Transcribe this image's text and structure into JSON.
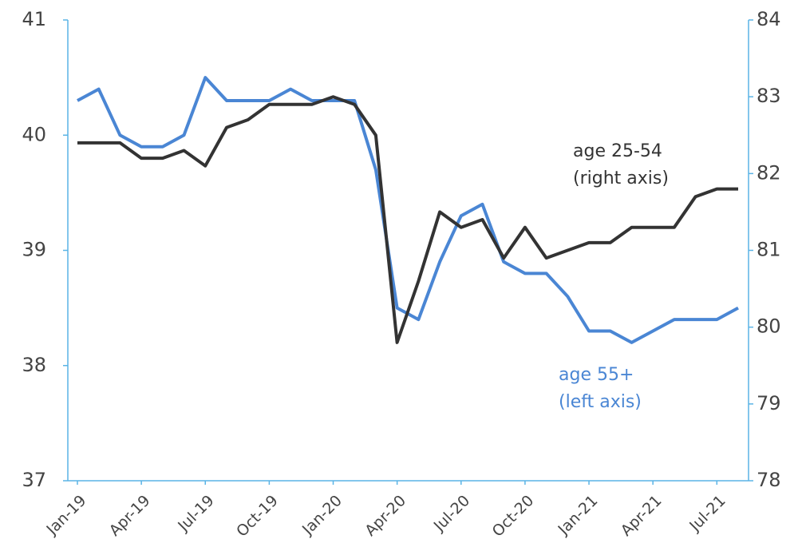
{
  "chart_data": {
    "type": "line",
    "categories": [
      "Jan-19",
      null,
      null,
      "Apr-19",
      null,
      null,
      "Jul-19",
      null,
      null,
      "Oct-19",
      null,
      null,
      "Jan-20",
      null,
      null,
      "Apr-20",
      null,
      null,
      "Jul-20",
      null,
      null,
      "Oct-20",
      null,
      null,
      "Jan-21",
      null,
      null,
      "Apr-21",
      null,
      null,
      "Jul-21",
      null
    ],
    "series": [
      {
        "name": "age 55+",
        "note": "(left axis)",
        "color": "#4a86d4",
        "axis": "y",
        "values": [
          40.3,
          40.4,
          40.0,
          39.9,
          39.9,
          40.0,
          40.5,
          40.3,
          40.3,
          40.3,
          40.4,
          40.3,
          40.3,
          40.3,
          39.7,
          38.5,
          38.4,
          38.9,
          39.3,
          39.4,
          38.9,
          38.8,
          38.8,
          38.6,
          38.3,
          38.3,
          38.2,
          38.3,
          38.4,
          38.4,
          38.4,
          38.5
        ]
      },
      {
        "name": "age 25-54",
        "note": "(right axis)",
        "color": "#333333",
        "axis": "y2",
        "values": [
          82.4,
          82.4,
          82.4,
          82.2,
          82.2,
          82.3,
          82.1,
          82.6,
          82.7,
          82.9,
          82.9,
          82.9,
          83.0,
          82.9,
          82.5,
          79.8,
          80.6,
          81.5,
          81.3,
          81.4,
          80.9,
          81.3,
          80.9,
          81.0,
          81.1,
          81.1,
          81.3,
          81.3,
          81.3,
          81.7,
          81.8,
          81.8
        ]
      }
    ],
    "ylim": [
      37,
      41
    ],
    "yticks": [
      37,
      38,
      39,
      40,
      41
    ],
    "y2lim": [
      78,
      84
    ],
    "y2ticks": [
      78,
      79,
      80,
      81,
      82,
      83,
      84
    ],
    "axis_color": "#5ab4e6"
  }
}
